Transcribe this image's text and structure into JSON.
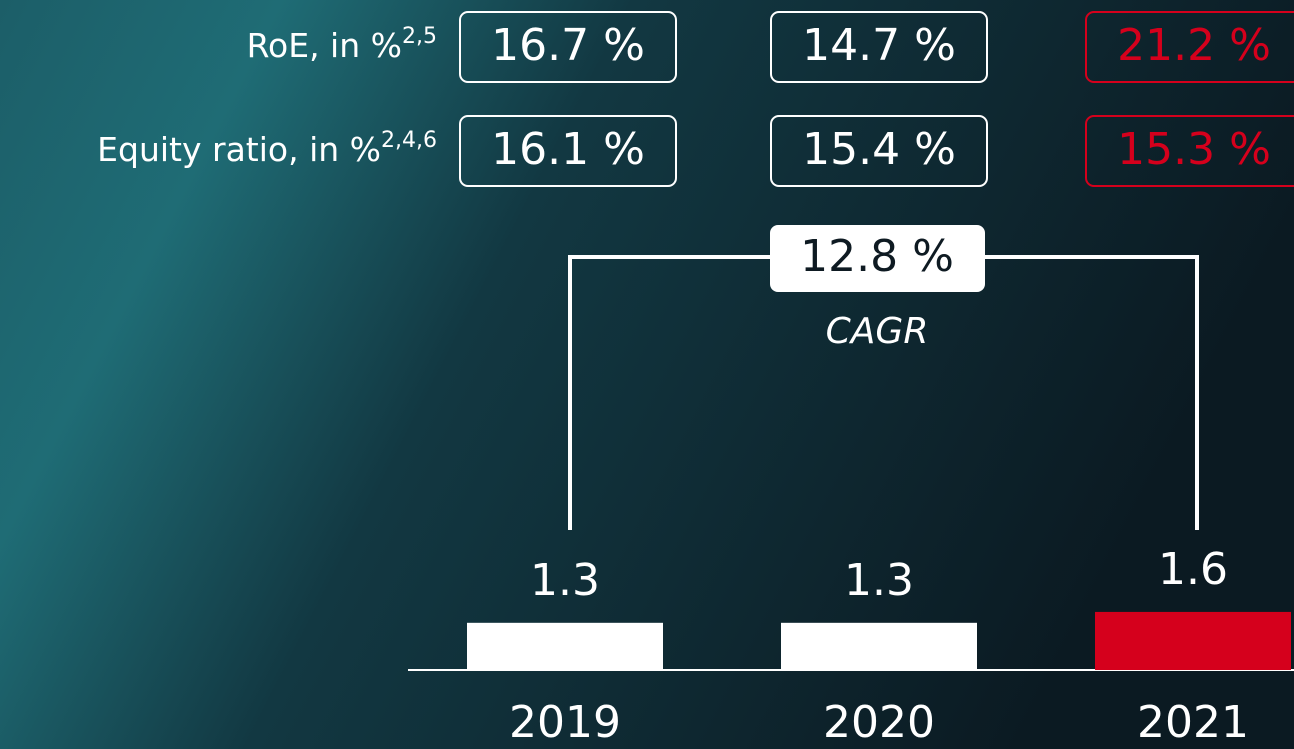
{
  "kpis": [
    {
      "label": "RoE, in %",
      "note": "2,5",
      "values": [
        "16.7 %",
        "14.7 %",
        "21.2 %"
      ]
    },
    {
      "label": "Equity ratio, in %",
      "note": "2,4,6",
      "values": [
        "16.1 %",
        "15.4 %",
        "15.3 %"
      ]
    }
  ],
  "chart_data": {
    "type": "bar",
    "categories": [
      "2019",
      "2020",
      "2021"
    ],
    "values": [
      1.3,
      1.3,
      1.6
    ],
    "colors": [
      "#ffffff",
      "#ffffff",
      "#d5001c"
    ],
    "annotation": {
      "value": "12.8 %",
      "label": "CAGR"
    }
  }
}
